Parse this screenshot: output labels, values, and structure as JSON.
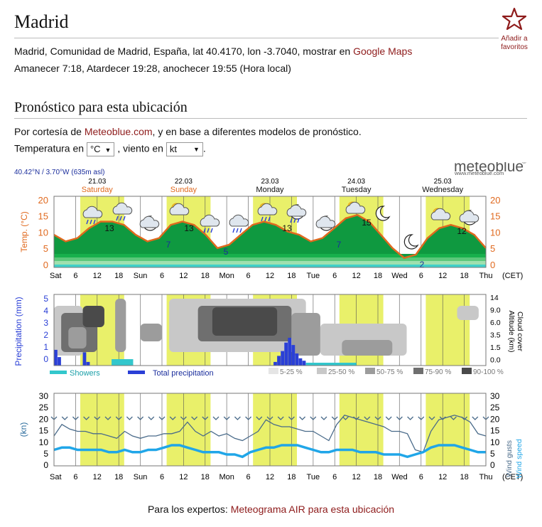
{
  "city": "Madrid",
  "favorite": {
    "label_line1": "Añadir a",
    "label_line2": "favoritos"
  },
  "location": {
    "text": "Madrid, Comunidad de Madrid, España, lat 40.4170, lon -3.7040, mostrar en ",
    "maps_link": "Google Maps"
  },
  "sun": {
    "text": "Amanecer 7:18, Atardecer 19:28, anochecer 19:55 (Hora local)"
  },
  "forecast": {
    "title": "Pronóstico para esta ubicación",
    "courtesy_prefix": "Por cortesía de ",
    "courtesy_link": "Meteoblue.com",
    "courtesy_suffix": ", y en base a diferentes modelos de pronóstico.",
    "temp_label": "Temperatura en",
    "temp_unit": "°C",
    "wind_label": ", viento en",
    "wind_unit": "kt",
    "end": "."
  },
  "meteogram": {
    "coords": "40.42°N / 3.70°W (635m asl)",
    "brand": "meteoblue",
    "brand_reg": "®",
    "brand_url": "www.meteoblue.com",
    "days": [
      {
        "date": "21.03",
        "name": "Saturday",
        "weekend": true
      },
      {
        "date": "22.03",
        "name": "Sunday",
        "weekend": true
      },
      {
        "date": "23.03",
        "name": "Monday",
        "weekend": false
      },
      {
        "date": "24.03",
        "name": "Tuesday",
        "weekend": false
      },
      {
        "date": "25.03",
        "name": "Wednesday",
        "weekend": false
      }
    ],
    "time_labels": [
      "Sat",
      "6",
      "12",
      "18",
      "Sun",
      "6",
      "12",
      "18",
      "Mon",
      "6",
      "12",
      "18",
      "Tue",
      "6",
      "12",
      "18",
      "Wed",
      "6",
      "12",
      "18",
      "Thu"
    ],
    "tz": "(CET)",
    "temp_axis_label": "Temp. (°C)",
    "temp_ticks": [
      "20",
      "15",
      "10",
      "5",
      "0"
    ],
    "temp_values": [
      {
        "label": "13"
      },
      {
        "label": "7"
      },
      {
        "label": "13"
      },
      {
        "label": "5"
      },
      {
        "label": "13"
      },
      {
        "label": "7"
      },
      {
        "label": "15"
      },
      {
        "label": "2"
      },
      {
        "label": "12"
      }
    ],
    "precip_axis_label": "Precipitation (mm)",
    "precip_ticks": [
      "5",
      "4",
      "3",
      "2",
      "1",
      "0"
    ],
    "cloud_ticks": [
      "14",
      "9.0",
      "6.0",
      "3.5",
      "1.5",
      "0.0"
    ],
    "cloud_axis_label": "Altitude (km)",
    "cloud_axis_label2": "Cloud cover",
    "legend_showers": "Showers",
    "legend_total": "Total precipitation",
    "cloud_legend": [
      "5-25 %",
      "25-50 %",
      "50-75 %",
      "75-90 %",
      "90-100 %"
    ],
    "wind_axis_label": "(kn)",
    "wind_ticks": [
      "30",
      "25",
      "20",
      "15",
      "10",
      "5",
      "0"
    ],
    "wind_gusts_label": "Wind gusts",
    "wind_speed_label": "Wind speed",
    "colors": {
      "highlight": "#e9f06a",
      "temp_line": "#e0691e",
      "temp_fill": "#13b04a",
      "precip": "#2a3fd6",
      "showers": "#33c7cc",
      "gust": "#4a6b8a",
      "speed": "#20a6e8",
      "day_label_weekend": "#e0691e",
      "link": "#8e1b1b"
    }
  },
  "footer": {
    "prefix": "Para los expertos: ",
    "link": "Meteograma AIR para esta ubicación"
  }
}
